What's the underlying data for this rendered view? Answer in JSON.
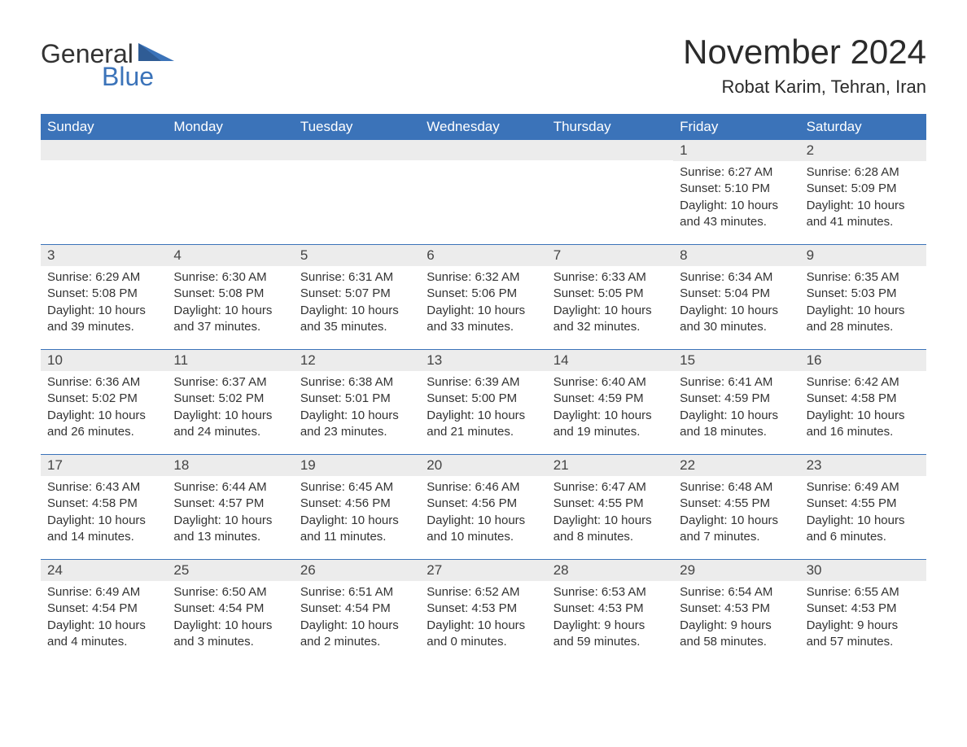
{
  "logo": {
    "text1": "General",
    "text2": "Blue",
    "accent_color": "#3b73b9"
  },
  "title": "November 2024",
  "location": "Robat Karim, Tehran, Iran",
  "colors": {
    "header_bg": "#3b73b9",
    "header_text": "#ffffff",
    "daynum_bg": "#ececec",
    "row_border": "#3b73b9",
    "body_text": "#333333"
  },
  "day_names": [
    "Sunday",
    "Monday",
    "Tuesday",
    "Wednesday",
    "Thursday",
    "Friday",
    "Saturday"
  ],
  "weeks": [
    [
      null,
      null,
      null,
      null,
      null,
      {
        "num": "1",
        "sunrise": "Sunrise: 6:27 AM",
        "sunset": "Sunset: 5:10 PM",
        "daylight": "Daylight: 10 hours and 43 minutes."
      },
      {
        "num": "2",
        "sunrise": "Sunrise: 6:28 AM",
        "sunset": "Sunset: 5:09 PM",
        "daylight": "Daylight: 10 hours and 41 minutes."
      }
    ],
    [
      {
        "num": "3",
        "sunrise": "Sunrise: 6:29 AM",
        "sunset": "Sunset: 5:08 PM",
        "daylight": "Daylight: 10 hours and 39 minutes."
      },
      {
        "num": "4",
        "sunrise": "Sunrise: 6:30 AM",
        "sunset": "Sunset: 5:08 PM",
        "daylight": "Daylight: 10 hours and 37 minutes."
      },
      {
        "num": "5",
        "sunrise": "Sunrise: 6:31 AM",
        "sunset": "Sunset: 5:07 PM",
        "daylight": "Daylight: 10 hours and 35 minutes."
      },
      {
        "num": "6",
        "sunrise": "Sunrise: 6:32 AM",
        "sunset": "Sunset: 5:06 PM",
        "daylight": "Daylight: 10 hours and 33 minutes."
      },
      {
        "num": "7",
        "sunrise": "Sunrise: 6:33 AM",
        "sunset": "Sunset: 5:05 PM",
        "daylight": "Daylight: 10 hours and 32 minutes."
      },
      {
        "num": "8",
        "sunrise": "Sunrise: 6:34 AM",
        "sunset": "Sunset: 5:04 PM",
        "daylight": "Daylight: 10 hours and 30 minutes."
      },
      {
        "num": "9",
        "sunrise": "Sunrise: 6:35 AM",
        "sunset": "Sunset: 5:03 PM",
        "daylight": "Daylight: 10 hours and 28 minutes."
      }
    ],
    [
      {
        "num": "10",
        "sunrise": "Sunrise: 6:36 AM",
        "sunset": "Sunset: 5:02 PM",
        "daylight": "Daylight: 10 hours and 26 minutes."
      },
      {
        "num": "11",
        "sunrise": "Sunrise: 6:37 AM",
        "sunset": "Sunset: 5:02 PM",
        "daylight": "Daylight: 10 hours and 24 minutes."
      },
      {
        "num": "12",
        "sunrise": "Sunrise: 6:38 AM",
        "sunset": "Sunset: 5:01 PM",
        "daylight": "Daylight: 10 hours and 23 minutes."
      },
      {
        "num": "13",
        "sunrise": "Sunrise: 6:39 AM",
        "sunset": "Sunset: 5:00 PM",
        "daylight": "Daylight: 10 hours and 21 minutes."
      },
      {
        "num": "14",
        "sunrise": "Sunrise: 6:40 AM",
        "sunset": "Sunset: 4:59 PM",
        "daylight": "Daylight: 10 hours and 19 minutes."
      },
      {
        "num": "15",
        "sunrise": "Sunrise: 6:41 AM",
        "sunset": "Sunset: 4:59 PM",
        "daylight": "Daylight: 10 hours and 18 minutes."
      },
      {
        "num": "16",
        "sunrise": "Sunrise: 6:42 AM",
        "sunset": "Sunset: 4:58 PM",
        "daylight": "Daylight: 10 hours and 16 minutes."
      }
    ],
    [
      {
        "num": "17",
        "sunrise": "Sunrise: 6:43 AM",
        "sunset": "Sunset: 4:58 PM",
        "daylight": "Daylight: 10 hours and 14 minutes."
      },
      {
        "num": "18",
        "sunrise": "Sunrise: 6:44 AM",
        "sunset": "Sunset: 4:57 PM",
        "daylight": "Daylight: 10 hours and 13 minutes."
      },
      {
        "num": "19",
        "sunrise": "Sunrise: 6:45 AM",
        "sunset": "Sunset: 4:56 PM",
        "daylight": "Daylight: 10 hours and 11 minutes."
      },
      {
        "num": "20",
        "sunrise": "Sunrise: 6:46 AM",
        "sunset": "Sunset: 4:56 PM",
        "daylight": "Daylight: 10 hours and 10 minutes."
      },
      {
        "num": "21",
        "sunrise": "Sunrise: 6:47 AM",
        "sunset": "Sunset: 4:55 PM",
        "daylight": "Daylight: 10 hours and 8 minutes."
      },
      {
        "num": "22",
        "sunrise": "Sunrise: 6:48 AM",
        "sunset": "Sunset: 4:55 PM",
        "daylight": "Daylight: 10 hours and 7 minutes."
      },
      {
        "num": "23",
        "sunrise": "Sunrise: 6:49 AM",
        "sunset": "Sunset: 4:55 PM",
        "daylight": "Daylight: 10 hours and 6 minutes."
      }
    ],
    [
      {
        "num": "24",
        "sunrise": "Sunrise: 6:49 AM",
        "sunset": "Sunset: 4:54 PM",
        "daylight": "Daylight: 10 hours and 4 minutes."
      },
      {
        "num": "25",
        "sunrise": "Sunrise: 6:50 AM",
        "sunset": "Sunset: 4:54 PM",
        "daylight": "Daylight: 10 hours and 3 minutes."
      },
      {
        "num": "26",
        "sunrise": "Sunrise: 6:51 AM",
        "sunset": "Sunset: 4:54 PM",
        "daylight": "Daylight: 10 hours and 2 minutes."
      },
      {
        "num": "27",
        "sunrise": "Sunrise: 6:52 AM",
        "sunset": "Sunset: 4:53 PM",
        "daylight": "Daylight: 10 hours and 0 minutes."
      },
      {
        "num": "28",
        "sunrise": "Sunrise: 6:53 AM",
        "sunset": "Sunset: 4:53 PM",
        "daylight": "Daylight: 9 hours and 59 minutes."
      },
      {
        "num": "29",
        "sunrise": "Sunrise: 6:54 AM",
        "sunset": "Sunset: 4:53 PM",
        "daylight": "Daylight: 9 hours and 58 minutes."
      },
      {
        "num": "30",
        "sunrise": "Sunrise: 6:55 AM",
        "sunset": "Sunset: 4:53 PM",
        "daylight": "Daylight: 9 hours and 57 minutes."
      }
    ]
  ]
}
